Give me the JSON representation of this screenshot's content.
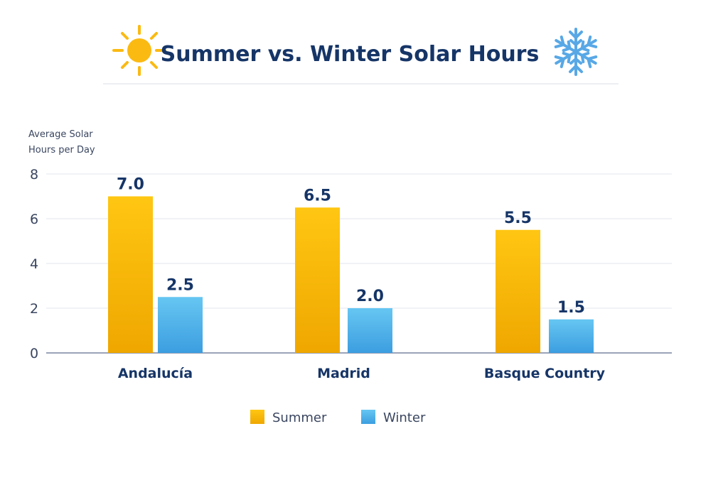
{
  "chart_data": {
    "type": "bar",
    "title": "Summer vs. Winter Solar Hours",
    "ylabel": [
      "Average Solar",
      "Hours per Day"
    ],
    "xlabel": "",
    "ylim": [
      0,
      8
    ],
    "yticks": [
      0,
      2,
      4,
      6,
      8
    ],
    "grid": true,
    "legend_placement": "bottom",
    "categories": [
      "Andalucía",
      "Madrid",
      "Basque Country"
    ],
    "series": [
      {
        "name": "Summer",
        "values": [
          7.0,
          6.5,
          5.5
        ],
        "labels": [
          "7.0",
          "6.5",
          "5.5"
        ],
        "color": "#FBBC0A"
      },
      {
        "name": "Winter",
        "values": [
          2.5,
          2.0,
          1.5
        ],
        "labels": [
          "2.5",
          "2.0",
          "1.5"
        ],
        "color": "#4DB2EC"
      }
    ],
    "icons": [
      "sun-icon",
      "snowflake-icon"
    ],
    "title_color": "#163567"
  }
}
